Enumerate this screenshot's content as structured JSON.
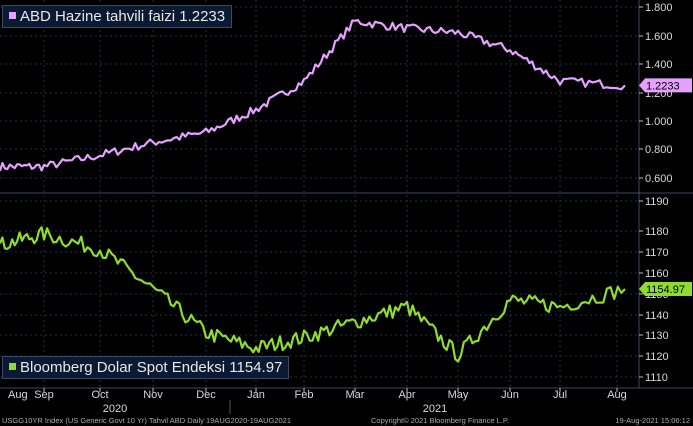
{
  "colors": {
    "yield": "#e6a0ff",
    "dollar": "#8edc2c",
    "background": "#000000",
    "grid": "#1e2f48"
  },
  "top_legend": "ABD Hazine tahvili faizi 1.2233",
  "bottom_legend": "Bloomberg Dolar Spot Endeksi 1154.97",
  "footer": {
    "left": "USGG10YR Index (US Generic Govt 10 Yr) Tahvil ABD  Daily 19AUG2020-19AUG2021",
    "center": "Copyright© 2021 Bloomberg Finance L.P.",
    "right": "19-Aug-2021 15:06:12"
  },
  "chart_data": [
    {
      "type": "line",
      "series": [
        {
          "name": "ABD Hazine tahvili faizi",
          "last_value_label": "1.2233"
        }
      ],
      "x": [
        "Aug",
        "Sep",
        "Oct",
        "Nov",
        "Dec",
        "Jan",
        "Feb",
        "Mar",
        "Apr",
        "May",
        "Jun",
        "Jul",
        "Aug"
      ],
      "y": [
        0.68,
        0.68,
        0.76,
        0.85,
        0.92,
        1.08,
        1.28,
        1.7,
        1.65,
        1.62,
        1.5,
        1.28,
        1.25
      ],
      "ylim": [
        0.55,
        1.85
      ],
      "y_ticks": [
        "0.600",
        "0.800",
        "1.000",
        "1.200",
        "1.400",
        "1.600",
        "1.800"
      ]
    },
    {
      "type": "line",
      "series": [
        {
          "name": "Bloomberg Dolar Spot Endeksi",
          "last_value_label": "1154.97"
        }
      ],
      "x": [
        "Aug",
        "Sep",
        "Oct",
        "Nov",
        "Dec",
        "Jan",
        "Feb",
        "Mar",
        "Apr",
        "May",
        "Jun",
        "Jul",
        "Aug"
      ],
      "y": [
        1170,
        1175,
        1168,
        1150,
        1130,
        1123,
        1128,
        1135,
        1142,
        1120,
        1145,
        1142,
        1150
      ],
      "ylim": [
        1108,
        1193
      ],
      "y_ticks": [
        "1110",
        "1120",
        "1130",
        "1140",
        "1150",
        "1160",
        "1170",
        "1180",
        "1190"
      ]
    }
  ],
  "x_axis": {
    "months": [
      "Aug",
      "Sep",
      "Oct",
      "Nov",
      "Dec",
      "Jan",
      "Feb",
      "Mar",
      "Apr",
      "May",
      "Jun",
      "Jul",
      "Aug"
    ],
    "years": [
      "2020",
      "2021"
    ]
  }
}
